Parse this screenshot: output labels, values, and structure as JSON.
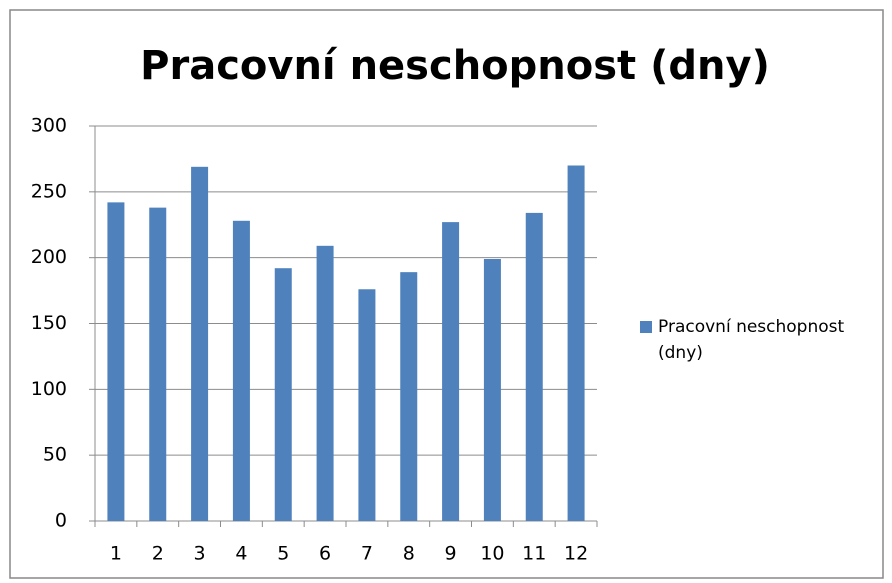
{
  "chart_data": {
    "type": "bar",
    "title": "Pracovní neschopnost (dny)",
    "categories": [
      "1",
      "2",
      "3",
      "4",
      "5",
      "6",
      "7",
      "8",
      "9",
      "10",
      "11",
      "12"
    ],
    "series": [
      {
        "name": "Pracovní neschopnost (dny)",
        "color": "#4f81bd",
        "values": [
          242,
          238,
          269,
          228,
          192,
          209,
          176,
          189,
          227,
          199,
          234,
          270
        ]
      }
    ],
    "ylim": [
      0,
      300
    ],
    "yticks": [
      0,
      50,
      100,
      150,
      200,
      250,
      300
    ],
    "grid": true,
    "legend": "right"
  }
}
